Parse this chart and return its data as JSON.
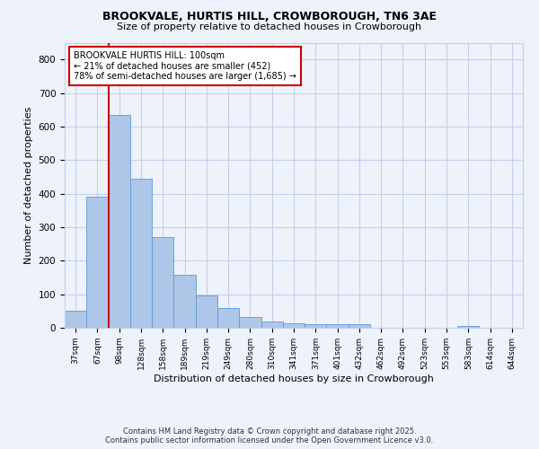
{
  "title1": "BROOKVALE, HURTIS HILL, CROWBOROUGH, TN6 3AE",
  "title2": "Size of property relative to detached houses in Crowborough",
  "xlabel": "Distribution of detached houses by size in Crowborough",
  "ylabel": "Number of detached properties",
  "categories": [
    "37sqm",
    "67sqm",
    "98sqm",
    "128sqm",
    "158sqm",
    "189sqm",
    "219sqm",
    "249sqm",
    "280sqm",
    "310sqm",
    "341sqm",
    "371sqm",
    "401sqm",
    "432sqm",
    "462sqm",
    "492sqm",
    "523sqm",
    "553sqm",
    "583sqm",
    "614sqm",
    "644sqm"
  ],
  "values": [
    50,
    390,
    635,
    445,
    270,
    157,
    97,
    60,
    32,
    20,
    14,
    10,
    10,
    12,
    0,
    0,
    0,
    0,
    5,
    0,
    0
  ],
  "bar_color": "#aec6e8",
  "bar_edge_color": "#5b9bd5",
  "vline_color": "#cc0000",
  "annotation_text": "BROOKVALE HURTIS HILL: 100sqm\n← 21% of detached houses are smaller (452)\n78% of semi-detached houses are larger (1,685) →",
  "annotation_box_color": "#ffffff",
  "annotation_box_edge": "#cc0000",
  "ylim": [
    0,
    850
  ],
  "yticks": [
    0,
    100,
    200,
    300,
    400,
    500,
    600,
    700,
    800
  ],
  "footer1": "Contains HM Land Registry data © Crown copyright and database right 2025.",
  "footer2": "Contains public sector information licensed under the Open Government Licence v3.0.",
  "bg_color": "#eef2fb",
  "plot_bg_color": "#eef2fb",
  "grid_color": "#c5cfe8"
}
